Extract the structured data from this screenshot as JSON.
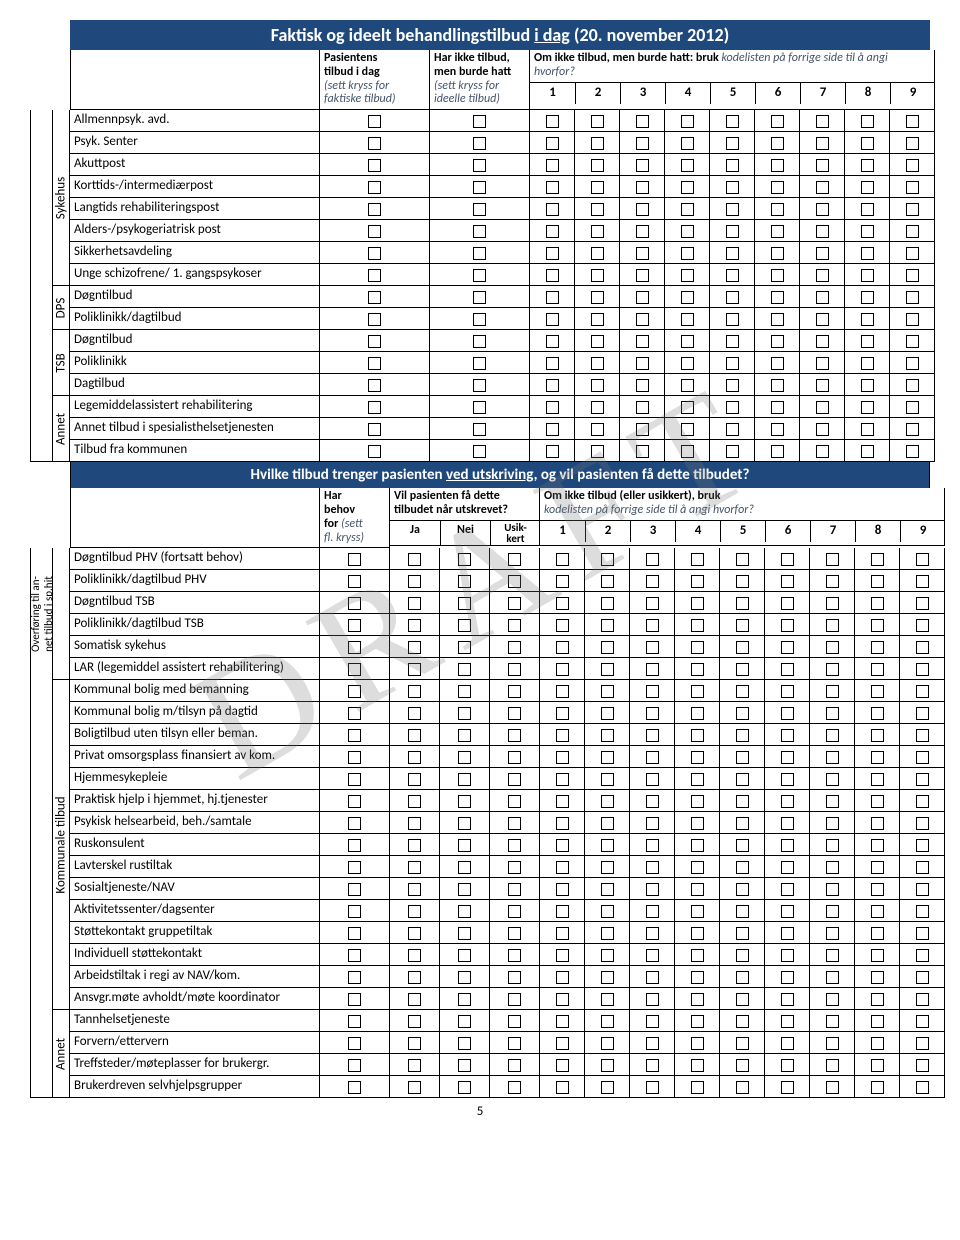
{
  "watermark": "DRAFT",
  "page_number": "5",
  "colors": {
    "header_bg": "#1f497d",
    "header_fg": "#ffffff",
    "italic": "#44546a"
  },
  "numbers": [
    "1",
    "2",
    "3",
    "4",
    "5",
    "6",
    "7",
    "8",
    "9"
  ],
  "section1": {
    "title_prefix": "Faktisk og ideelt behandlingstilbud",
    "title_underline": "i dag",
    "title_suffix": "(20. november 2012)",
    "header": {
      "col1": {
        "line1": "Pasientens",
        "line2": "tilbud i dag",
        "note1": "(sett kryss for",
        "note2": "faktiske tilbud)"
      },
      "col2": {
        "line1": "Har ikke tilbud,",
        "line2": "men burde hatt",
        "note1": "(sett kryss for",
        "note2": "ideelle tilbud)"
      },
      "col3": {
        "line1": "Om ikke tilbud, men burde hatt: bruk ",
        "note": "kodelisten på forrige side til å angi hvorfor?"
      }
    },
    "groups": [
      {
        "outer": "",
        "inner": "Sykehus",
        "outer_span": 16,
        "rows": [
          "Allmennpsyk. avd.",
          "Psyk. Senter",
          "Akuttpost",
          "Korttids-/intermediærpost",
          "Langtids rehabiliteringspost",
          "Alders-/psykogeriatrisk post",
          "Sikkerhetsavdeling",
          "Unge schizofrene/ 1. gangspsykoser"
        ]
      },
      {
        "inner": "DPS",
        "rows": [
          "Døgntilbud",
          "Poliklinikk/dagtilbud"
        ]
      },
      {
        "inner": "TSB",
        "rows": [
          "Døgntilbud",
          "Poliklinikk",
          "Dagtilbud"
        ]
      },
      {
        "inner": "Annet",
        "rows": [
          "Legemiddelassistert rehabilitering",
          "Annet tilbud i spesialisthelsetjenesten",
          "Tilbud fra kommunen"
        ]
      }
    ]
  },
  "section2": {
    "title_prefix": "Hvilke tilbud trenger pasienten",
    "title_underline": "ved utskriving",
    "title_suffix": ", og vil pasienten få dette tilbudet?",
    "header": {
      "col1": {
        "line1": "Har",
        "line2": "behov",
        "line3": "for",
        "note1": "(sett",
        "note2": "fl. kryss)"
      },
      "col2": {
        "line1": "Vil pasienten få dette",
        "line2": "tilbudet når utskrevet?",
        "ja": "Ja",
        "nei": "Nei",
        "usik1": "Usik-",
        "usik2": "kert"
      },
      "col3": {
        "line1": "Om ikke tilbud (eller usikkert), bruk",
        "note": "kodelisten på forrige side til å angi hvorfor?"
      }
    },
    "groups": [
      {
        "outer": "Overføring til an-\nnet tilbud i sp.hjt",
        "outer_span": 25,
        "inner": "",
        "inner_span": 6,
        "rows": [
          "Døgntilbud PHV (fortsatt behov)",
          "Poliklinikk/dagtilbud PHV",
          "Døgntilbud TSB",
          "Poliklinikk/dagtilbud TSB",
          "Somatisk sykehus",
          "LAR (legemiddel assistert rehabilitering)"
        ]
      },
      {
        "inner": "Kommunale tilbud",
        "inner_span": 15,
        "rows": [
          "Kommunal bolig med bemanning",
          "Kommunal bolig m/tilsyn på dagtid",
          "Boligtilbud uten tilsyn eller beman.",
          "Privat omsorgsplass finansiert av kom.",
          "Hjemmesykepleie",
          "Praktisk hjelp i hjemmet, hj.tjenester",
          "Psykisk helsearbeid, beh./samtale",
          "Ruskonsulent",
          "Lavterskel rustiltak",
          "Sosialtjeneste/NAV",
          "Aktivitetssenter/dagsenter",
          "Støttekontakt gruppetiltak",
          "Individuell støttekontakt",
          "Arbeidstiltak i regi av NAV/kom.",
          "Ansvgr.møte avholdt/møte koordinator"
        ]
      },
      {
        "inner": "Annet",
        "inner_span": 4,
        "rows": [
          "Tannhelsetjeneste",
          "Forvern/ettervern",
          "Treffsteder/møteplasser for brukergr.",
          "Brukerdreven selvhjelpsgrupper"
        ]
      }
    ]
  }
}
